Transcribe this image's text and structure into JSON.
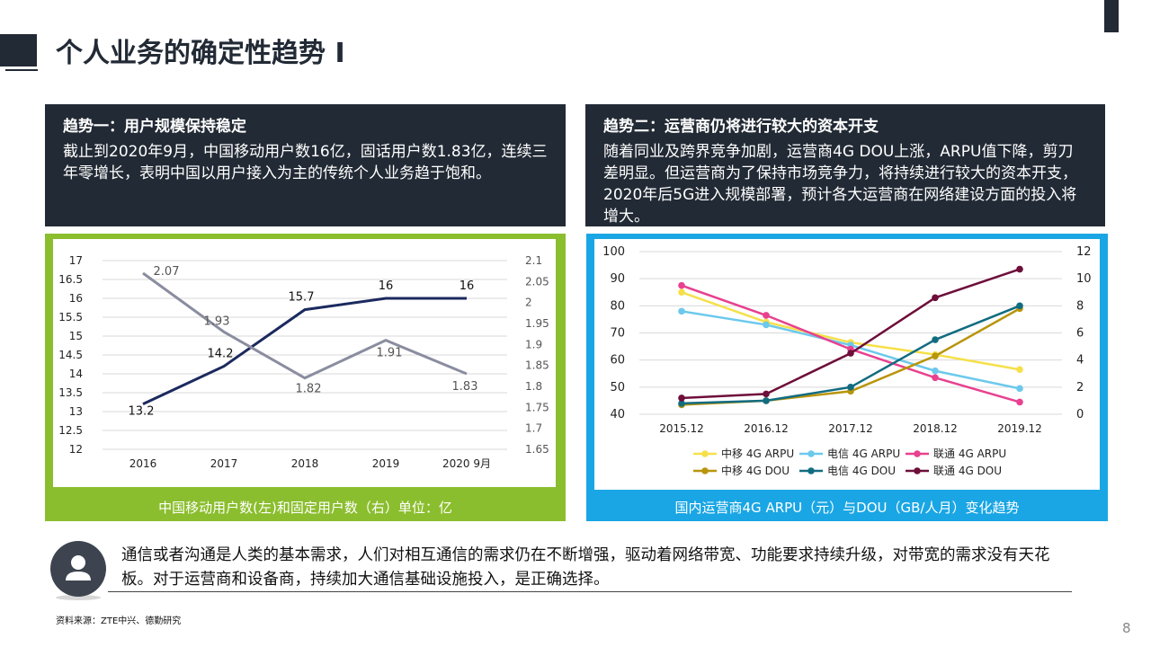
{
  "page": {
    "title": "个人业务的确定性趋势 I",
    "page_number": "8",
    "source": "资料来源：ZTE中兴、德勤研究"
  },
  "trend1": {
    "title": "趋势一：用户规模保持稳定",
    "text": "截止到2020年9月，中国移动用户数16亿，固话用户数1.83亿，连续三年零增长，表明中国以用户接入为主的传统个人业务趋于饱和。"
  },
  "trend2": {
    "title": "趋势二：运营商仍将进行较大的资本开支",
    "text": "随着同业及跨界竞争加剧，运营商4G DOU上涨，ARPU值下降，剪刀差明显。但运营商为了保持市场竞争力，将持续进行较大的资本开支，2020年后5G进入规模部署，预计各大运营商在网络建设方面的投入将增大。"
  },
  "quote": {
    "text": "通信或者沟通是人类的基本需求，人们对相互通信的需求仍在不断增强，驱动着网络带宽、功能要求持续升级，对带宽的需求没有天花板。对于运营商和设备商，持续加大通信基础设施投入，是正确选择。"
  },
  "colors": {
    "dark": "#222a35",
    "green": "#8bbe2e",
    "blue": "#1aa6e4"
  },
  "chart_data": [
    {
      "type": "line",
      "caption": "中国移动用户数(左)和固定用户数（右）单位：亿",
      "categories": [
        "2016",
        "2017",
        "2018",
        "2019",
        "2020 9月"
      ],
      "y_left": {
        "min": 12,
        "max": 17,
        "ticks": [
          "12",
          "12.5",
          "13",
          "13.5",
          "14",
          "14.5",
          "15",
          "15.5",
          "16",
          "16.5",
          "17"
        ]
      },
      "y_right": {
        "min": 1.65,
        "max": 2.1,
        "ticks": [
          "1.65",
          "1.7",
          "1.75",
          "1.8",
          "1.85",
          "1.9",
          "1.95",
          "2",
          "2.05",
          "2.1"
        ]
      },
      "series": [
        {
          "axis": "left",
          "color": "#1b2a5e",
          "values": [
            13.2,
            14.2,
            15.7,
            16,
            16
          ],
          "labels": [
            "13.2",
            "14.2",
            "15.7",
            "16",
            "16"
          ]
        },
        {
          "axis": "right",
          "color": "#8a8d9f",
          "values": [
            2.07,
            1.93,
            1.82,
            1.91,
            1.83
          ],
          "labels": [
            "2.07",
            "1.93",
            "1.82",
            "1.91",
            "1.83"
          ]
        }
      ],
      "grid": true
    },
    {
      "type": "line",
      "caption": "国内运营商4G ARPU（元）与DOU（GB/人月）变化趋势",
      "categories": [
        "2015.12",
        "2016.12",
        "2017.12",
        "2018.12",
        "2019.12"
      ],
      "y_left": {
        "min": 40,
        "max": 100,
        "ticks": [
          "40",
          "50",
          "60",
          "70",
          "80",
          "90",
          "100"
        ]
      },
      "y_right": {
        "min": 0,
        "max": 12,
        "ticks": [
          "0",
          "2",
          "4",
          "6",
          "8",
          "10",
          "12"
        ]
      },
      "legend_position": "bottom",
      "series": [
        {
          "name": "中移 4G ARPU",
          "axis": "left",
          "color": "#f6e04a",
          "values": [
            85,
            74,
            66.5,
            62,
            56.5
          ]
        },
        {
          "name": "电信 4G ARPU",
          "axis": "left",
          "color": "#6cc9ec",
          "values": [
            78,
            73,
            65.5,
            56,
            49.5
          ]
        },
        {
          "name": "联通 4G ARPU",
          "axis": "left",
          "color": "#e8418f",
          "values": [
            87.5,
            76.5,
            64,
            53.5,
            44.5
          ]
        },
        {
          "name": "中移 4G DOU",
          "axis": "right",
          "color": "#b8950c",
          "values": [
            0.7,
            1.0,
            1.7,
            4.3,
            7.8
          ]
        },
        {
          "name": "电信 4G DOU",
          "axis": "right",
          "color": "#126c80",
          "values": [
            0.8,
            1.0,
            2.0,
            5.5,
            8.0
          ]
        },
        {
          "name": "联通 4G DOU",
          "axis": "right",
          "color": "#6e0e3a",
          "values": [
            1.2,
            1.5,
            4.5,
            8.6,
            10.7
          ]
        }
      ]
    }
  ]
}
